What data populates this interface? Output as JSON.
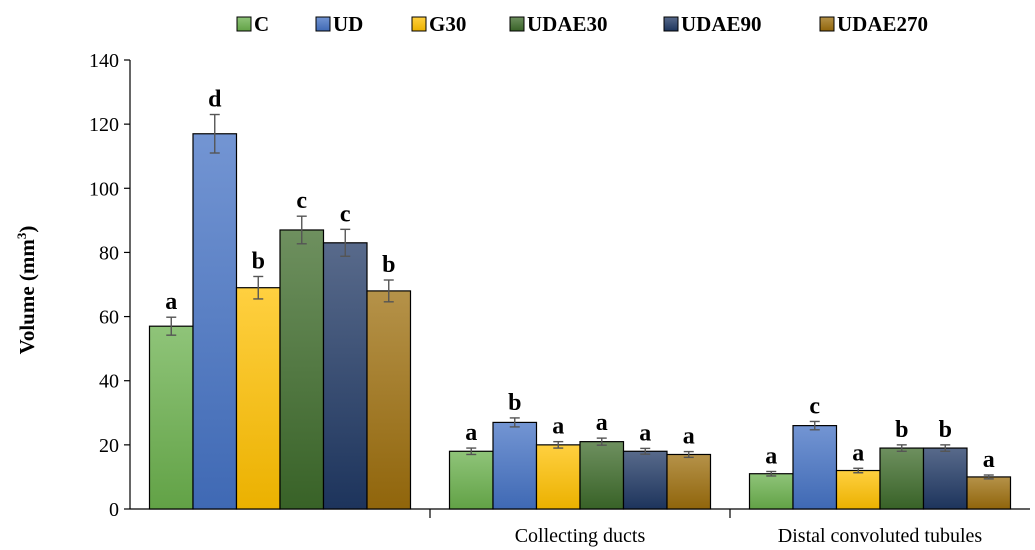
{
  "chart_data": {
    "type": "bar",
    "ylabel": "Volume (mm",
    "ylabel_sup": "3",
    "ylabel_end": ")",
    "ylim": [
      0,
      140
    ],
    "yticks": [
      0,
      20,
      40,
      60,
      80,
      100,
      120,
      140
    ],
    "grid": false,
    "legend_position": "top",
    "categories": [
      "",
      "Collecting ducts",
      "Distal convoluted tubules"
    ],
    "series": [
      {
        "name": "C",
        "color": "#6ab04c",
        "values": [
          57,
          18,
          11
        ],
        "errors": [
          2.8,
          1.0,
          0.7
        ],
        "labels": [
          "a",
          "a",
          "a"
        ]
      },
      {
        "name": "UD",
        "color": "#4472c4",
        "values": [
          117,
          27,
          26
        ],
        "errors": [
          6.0,
          1.4,
          1.3
        ],
        "labels": [
          "d",
          "b",
          "c"
        ]
      },
      {
        "name": "G30",
        "color": "#ffc000",
        "values": [
          69,
          20,
          12
        ],
        "errors": [
          3.5,
          1.0,
          0.7
        ],
        "labels": [
          "b",
          "a",
          "a"
        ]
      },
      {
        "name": "UDAE30",
        "color": "#3d6b2a",
        "values": [
          87,
          21,
          19
        ],
        "errors": [
          4.3,
          1.1,
          1.0
        ],
        "labels": [
          "c",
          "a",
          "b"
        ]
      },
      {
        "name": "UDAE90",
        "color": "#203864",
        "values": [
          83,
          18,
          19
        ],
        "errors": [
          4.2,
          0.9,
          1.0
        ],
        "labels": [
          "c",
          "a",
          "b"
        ]
      },
      {
        "name": "UDAE270",
        "color": "#9c6e0c",
        "values": [
          68,
          17,
          10
        ],
        "errors": [
          3.4,
          0.9,
          0.6
        ],
        "labels": [
          "b",
          "a",
          "a"
        ]
      }
    ]
  }
}
